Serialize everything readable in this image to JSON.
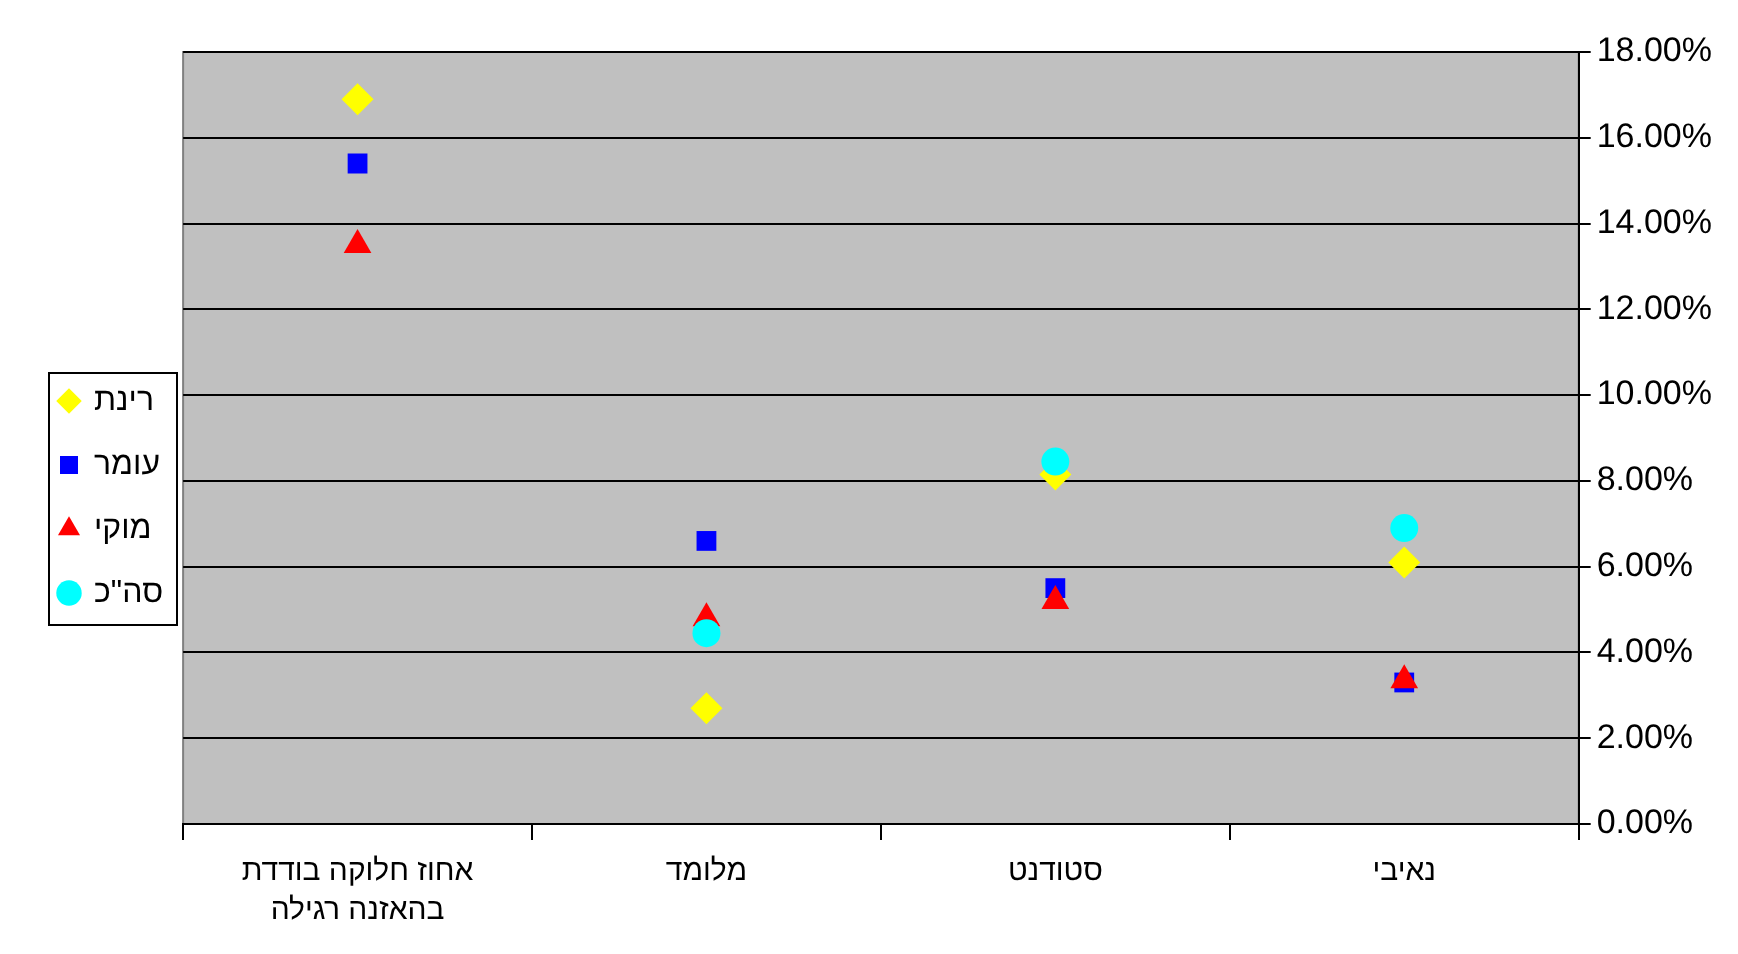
{
  "chart_data": {
    "type": "scatter",
    "categories": [
      "אחוז חלוקה בודדת בהאזנה רגילה",
      "מלומד",
      "סטודנט",
      "נאיבי"
    ],
    "series": [
      {
        "name": "רינת",
        "color": "#ffff00",
        "marker": "diamond",
        "values": [
          16.9,
          2.7,
          8.15,
          6.1
        ]
      },
      {
        "name": "עומר",
        "color": "#0000ff",
        "marker": "square",
        "values": [
          15.4,
          6.6,
          5.5,
          3.3
        ]
      },
      {
        "name": "מוקי",
        "color": "#ff0000",
        "marker": "triangle",
        "values": [
          13.5,
          4.8,
          5.2,
          3.35
        ]
      },
      {
        "name": "סה\"כ",
        "color": "#00ffff",
        "marker": "circle",
        "values": [
          null,
          4.45,
          8.45,
          6.9
        ]
      }
    ],
    "ylim": [
      0,
      18
    ],
    "yticks": [
      {
        "value": 0,
        "label": "0.00%"
      },
      {
        "value": 2,
        "label": "2.00%"
      },
      {
        "value": 4,
        "label": "4.00%"
      },
      {
        "value": 6,
        "label": "6.00%"
      },
      {
        "value": 8,
        "label": "8.00%"
      },
      {
        "value": 10,
        "label": "10.00%"
      },
      {
        "value": 12,
        "label": "12.00%"
      },
      {
        "value": 14,
        "label": "14.00%"
      },
      {
        "value": 16,
        "label": "16.00%"
      },
      {
        "value": 18,
        "label": "18.00%"
      }
    ],
    "grid": "y",
    "legend": "left"
  }
}
